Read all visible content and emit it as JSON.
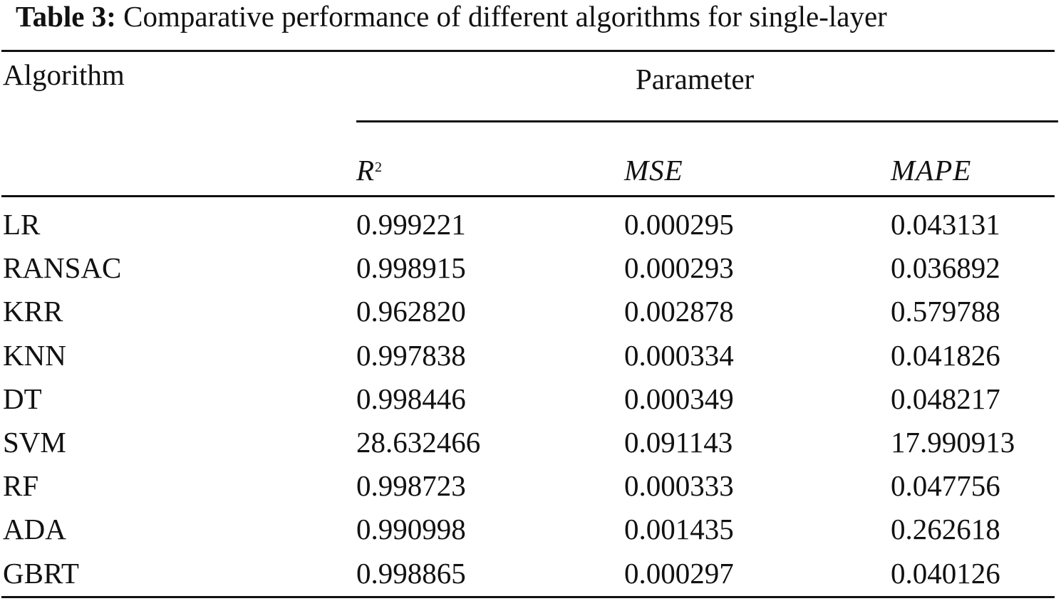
{
  "caption": {
    "label": "Table 3:",
    "text": "Comparative performance of different algorithms for single-layer"
  },
  "header": {
    "algorithm": "Algorithm",
    "parameter": "Parameter",
    "columns": {
      "r2_base": "R",
      "r2_sup": "2",
      "mse": "MSE",
      "mape": "MAPE"
    }
  },
  "rows": [
    {
      "algorithm": "LR",
      "r2": "0.999221",
      "mse": "0.000295",
      "mape": "0.043131"
    },
    {
      "algorithm": "RANSAC",
      "r2": "0.998915",
      "mse": "0.000293",
      "mape": "0.036892"
    },
    {
      "algorithm": "KRR",
      "r2": "0.962820",
      "mse": "0.002878",
      "mape": "0.579788"
    },
    {
      "algorithm": "KNN",
      "r2": "0.997838",
      "mse": "0.000334",
      "mape": "0.041826"
    },
    {
      "algorithm": "DT",
      "r2": "0.998446",
      "mse": "0.000349",
      "mape": "0.048217"
    },
    {
      "algorithm": "SVM",
      "r2": "28.632466",
      "mse": "0.091143",
      "mape": "17.990913"
    },
    {
      "algorithm": "RF",
      "r2": "0.998723",
      "mse": "0.000333",
      "mape": "0.047756"
    },
    {
      "algorithm": "ADA",
      "r2": "0.990998",
      "mse": "0.001435",
      "mape": "0.262618"
    },
    {
      "algorithm": "GBRT",
      "r2": "0.998865",
      "mse": "0.000297",
      "mape": "0.040126"
    }
  ]
}
